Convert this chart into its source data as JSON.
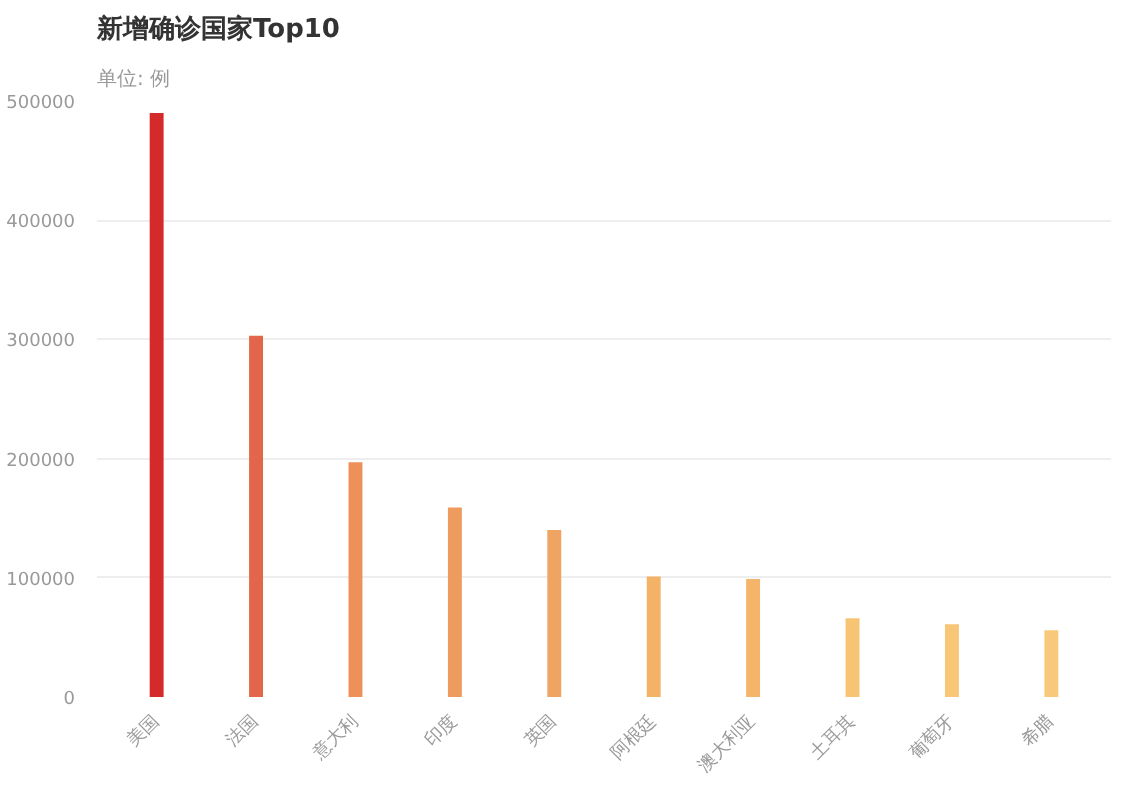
{
  "chart_data": {
    "type": "bar",
    "title": "新增确诊国家Top10",
    "subtitle": "单位: 例",
    "categories": [
      "美国",
      "法国",
      "意大利",
      "印度",
      "英国",
      "阿根廷",
      "澳大利亚",
      "土耳其",
      "葡萄牙",
      "希腊"
    ],
    "values": [
      490000,
      303000,
      197000,
      159000,
      140000,
      101000,
      99000,
      66000,
      61000,
      56000
    ],
    "colors": [
      "#d42a2a",
      "#e2674a",
      "#ee9059",
      "#ef9a5e",
      "#f0a463",
      "#f3b266",
      "#f4b469",
      "#f7c474",
      "#f7c676",
      "#f8c97a"
    ],
    "ylim": [
      0,
      500000
    ],
    "yticks": [
      0,
      100000,
      200000,
      300000,
      400000,
      500000
    ],
    "grid": "y"
  }
}
